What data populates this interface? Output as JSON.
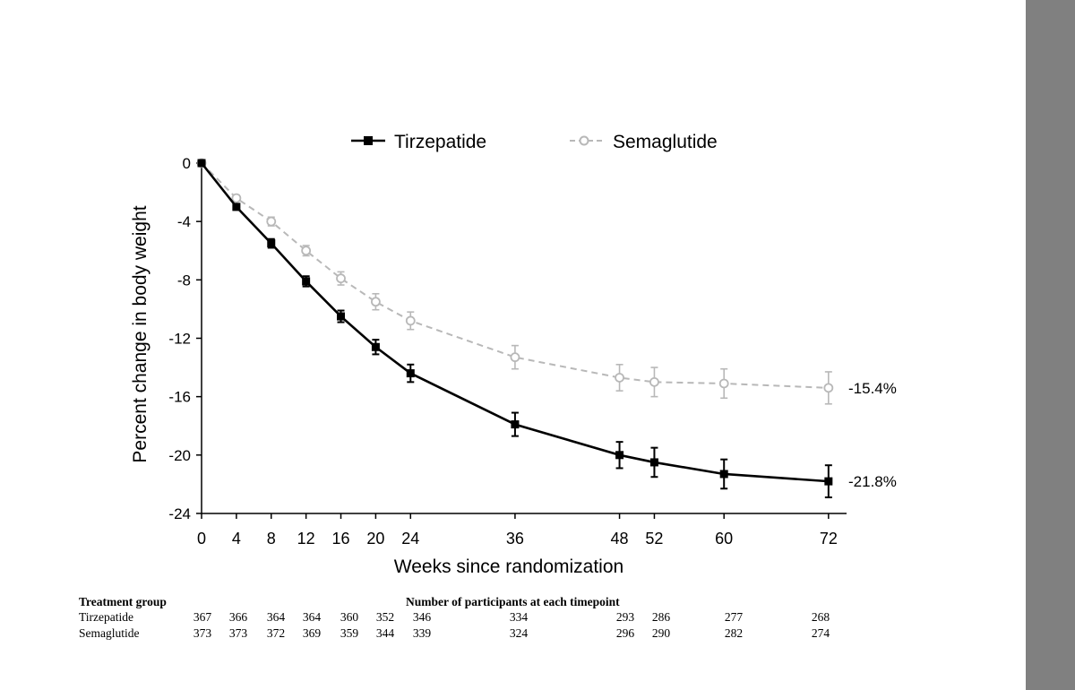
{
  "chart_data": {
    "type": "line",
    "x": [
      0,
      4,
      8,
      12,
      16,
      20,
      24,
      36,
      48,
      52,
      60,
      72
    ],
    "xticks": [
      0,
      4,
      8,
      12,
      16,
      20,
      24,
      36,
      48,
      52,
      60,
      72
    ],
    "yticks": [
      0,
      -4,
      -8,
      -12,
      -16,
      -20,
      -24
    ],
    "xlim": [
      0,
      74
    ],
    "ylim": [
      -24,
      0
    ],
    "xlabel": "Weeks since randomization",
    "ylabel": "Percent change in body weight",
    "legend_position": "top",
    "grid": false,
    "series": [
      {
        "name": "Tirzepatide",
        "values": [
          0,
          -3.0,
          -5.5,
          -8.1,
          -10.5,
          -12.6,
          -14.4,
          -17.9,
          -20.0,
          -20.5,
          -21.3,
          -21.8
        ],
        "error": [
          0,
          0.2,
          0.3,
          0.35,
          0.4,
          0.5,
          0.6,
          0.8,
          0.9,
          1.0,
          1.0,
          1.1
        ],
        "end_label": "-21.8%",
        "color": "#000000",
        "marker": "filled-square",
        "line_style": "solid"
      },
      {
        "name": "Semaglutide",
        "values": [
          0,
          -2.4,
          -4.0,
          -6.0,
          -7.9,
          -9.5,
          -10.8,
          -13.3,
          -14.7,
          -15.0,
          -15.1,
          -15.4
        ],
        "error": [
          0,
          0.2,
          0.3,
          0.35,
          0.45,
          0.55,
          0.6,
          0.8,
          0.9,
          1.0,
          1.0,
          1.1
        ],
        "end_label": "-15.4%",
        "color": "#b8b8b8",
        "marker": "open-circle",
        "line_style": "dashed"
      }
    ]
  },
  "table": {
    "group_header": "Treatment group",
    "count_header": "Number of participants at each timepoint",
    "rows": [
      {
        "name": "Tirzepatide",
        "counts": [
          "367",
          "366",
          "364",
          "364",
          "360",
          "352",
          "346",
          "334",
          "293",
          "286",
          "277",
          "268"
        ]
      },
      {
        "name": "Semaglutide",
        "counts": [
          "373",
          "373",
          "372",
          "369",
          "359",
          "344",
          "339",
          "324",
          "296",
          "290",
          "282",
          "274"
        ]
      }
    ]
  }
}
